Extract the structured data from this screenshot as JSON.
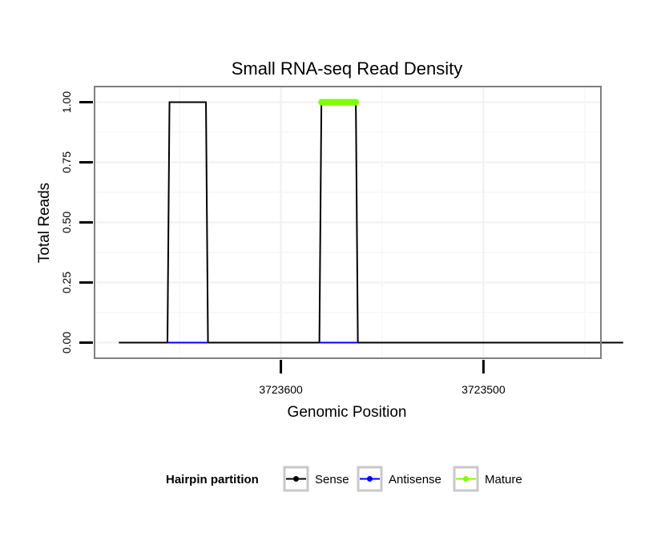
{
  "chart_data": {
    "type": "line",
    "title": "Small RNA-seq Read Density",
    "xlabel": "Genomic Position",
    "ylabel": "Total Reads",
    "x_reversed": true,
    "xlim": [
      3723692,
      3723442
    ],
    "ylim": [
      -0.065,
      1.065
    ],
    "xticks": [
      3723600,
      3723500
    ],
    "yticks": [
      0,
      0.25,
      0.5,
      0.75,
      1
    ],
    "ytick_labels": [
      "0.00",
      "0.25",
      "0.50",
      "0.75",
      "1.00"
    ],
    "grid": true,
    "legend": {
      "title": "Hairpin partition",
      "position": "bottom"
    },
    "series": [
      {
        "name": "Sense",
        "color": "#000000",
        "x": [
          3723680,
          3723656,
          3723655,
          3723637,
          3723636,
          3723581,
          3723580,
          3723563,
          3723562,
          3723431
        ],
        "values": [
          0,
          0,
          1,
          1,
          0,
          0,
          1,
          1,
          0,
          0
        ]
      },
      {
        "name": "Antisense",
        "color": "#0000ff",
        "x": [
          3723656,
          3723636,
          3723581,
          3723562
        ],
        "values": [
          0,
          0,
          0,
          0
        ],
        "segments": [
          [
            0,
            1
          ],
          [
            2,
            3
          ]
        ]
      },
      {
        "name": "Mature",
        "color": "#7fff00",
        "x": [
          3723580,
          3723563
        ],
        "values": [
          1,
          1
        ]
      }
    ]
  }
}
